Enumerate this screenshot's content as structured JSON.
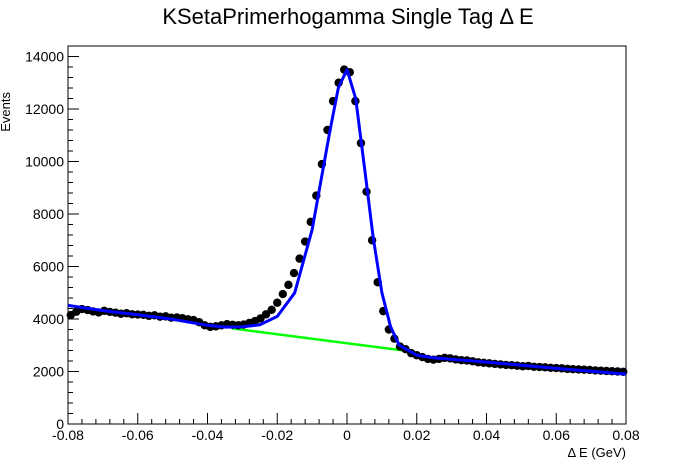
{
  "chart_data": {
    "type": "scatter",
    "title": "KSetaPrimerhogamma Single Tag Δ E",
    "xlabel": "Δ E (GeV)",
    "ylabel": "Events",
    "xlim": [
      -0.08,
      0.08
    ],
    "ylim": [
      0,
      14400
    ],
    "xticks": [
      "-0.08",
      "-0.06",
      "-0.04",
      "-0.02",
      "0",
      "0.02",
      "0.04",
      "0.06",
      "0.08"
    ],
    "yticks": [
      "0",
      "2000",
      "4000",
      "6000",
      "8000",
      "10000",
      "12000",
      "14000"
    ],
    "grid": false,
    "colors": {
      "data": "#000000",
      "fit": "#0000ff",
      "background": "#00ff00"
    },
    "series": [
      {
        "kind": "data",
        "x": [
          -0.0792,
          -0.0776,
          -0.076,
          -0.0744,
          -0.0728,
          -0.0712,
          -0.0696,
          -0.068,
          -0.0664,
          -0.0648,
          -0.0632,
          -0.0616,
          -0.06,
          -0.0584,
          -0.0568,
          -0.0552,
          -0.0536,
          -0.052,
          -0.0504,
          -0.0488,
          -0.0472,
          -0.0456,
          -0.044,
          -0.0424,
          -0.0408,
          -0.0392,
          -0.0376,
          -0.036,
          -0.0344,
          -0.0328,
          -0.0312,
          -0.0296,
          -0.028,
          -0.0264,
          -0.0248,
          -0.0232,
          -0.0216,
          -0.02,
          -0.0184,
          -0.0168,
          -0.0152,
          -0.0136,
          -0.012,
          -0.0104,
          -0.0088,
          -0.0072,
          -0.0056,
          -0.004,
          -0.0024,
          -0.0008,
          0.0008,
          0.0024,
          0.004,
          0.0056,
          0.0072,
          0.0088,
          0.0104,
          0.012,
          0.0136,
          0.0152,
          0.0168,
          0.0184,
          0.02,
          0.0216,
          0.0232,
          0.0248,
          0.0264,
          0.028,
          0.0296,
          0.0312,
          0.0328,
          0.0344,
          0.036,
          0.0376,
          0.0392,
          0.0408,
          0.0424,
          0.044,
          0.0456,
          0.0472,
          0.0488,
          0.0504,
          0.052,
          0.0536,
          0.0552,
          0.0568,
          0.0584,
          0.06,
          0.0616,
          0.0632,
          0.0648,
          0.0664,
          0.068,
          0.0696,
          0.0712,
          0.0728,
          0.0744,
          0.076,
          0.0776,
          0.0792
        ],
        "y": [
          4150,
          4280,
          4380,
          4340,
          4290,
          4250,
          4310,
          4270,
          4240,
          4200,
          4220,
          4180,
          4170,
          4160,
          4120,
          4140,
          4090,
          4100,
          4050,
          4060,
          4030,
          3990,
          3960,
          3880,
          3760,
          3700,
          3720,
          3760,
          3800,
          3780,
          3760,
          3790,
          3850,
          3920,
          4020,
          4180,
          4350,
          4620,
          4950,
          5300,
          5750,
          6300,
          6950,
          7700,
          8700,
          9900,
          11200,
          12300,
          13000,
          13500,
          13400,
          12300,
          10700,
          8850,
          7000,
          5400,
          4300,
          3600,
          3250,
          2950,
          2850,
          2700,
          2620,
          2550,
          2480,
          2450,
          2480,
          2520,
          2500,
          2460,
          2430,
          2420,
          2390,
          2350,
          2330,
          2310,
          2290,
          2270,
          2250,
          2240,
          2220,
          2200,
          2210,
          2180,
          2170,
          2160,
          2140,
          2130,
          2120,
          2100,
          2090,
          2080,
          2070,
          2060,
          2040,
          2030,
          2020,
          2010,
          2000,
          1990
        ]
      },
      {
        "kind": "fit",
        "x": [
          -0.08,
          -0.07,
          -0.06,
          -0.05,
          -0.04,
          -0.035,
          -0.03,
          -0.025,
          -0.02,
          -0.015,
          -0.01,
          -0.005,
          -0.0025,
          0.0,
          0.0025,
          0.005,
          0.0075,
          0.01,
          0.0125,
          0.015,
          0.02,
          0.025,
          0.03,
          0.04,
          0.05,
          0.06,
          0.07,
          0.08
        ],
        "y": [
          4520,
          4320,
          4160,
          3990,
          3760,
          3690,
          3700,
          3780,
          4100,
          5000,
          7400,
          11100,
          12800,
          13500,
          12400,
          9800,
          7100,
          5000,
          3700,
          3000,
          2620,
          2520,
          2470,
          2360,
          2240,
          2120,
          2010,
          1900
        ]
      },
      {
        "kind": "background",
        "x": [
          -0.033,
          0.018
        ],
        "y": [
          3640,
          2770
        ]
      }
    ]
  }
}
